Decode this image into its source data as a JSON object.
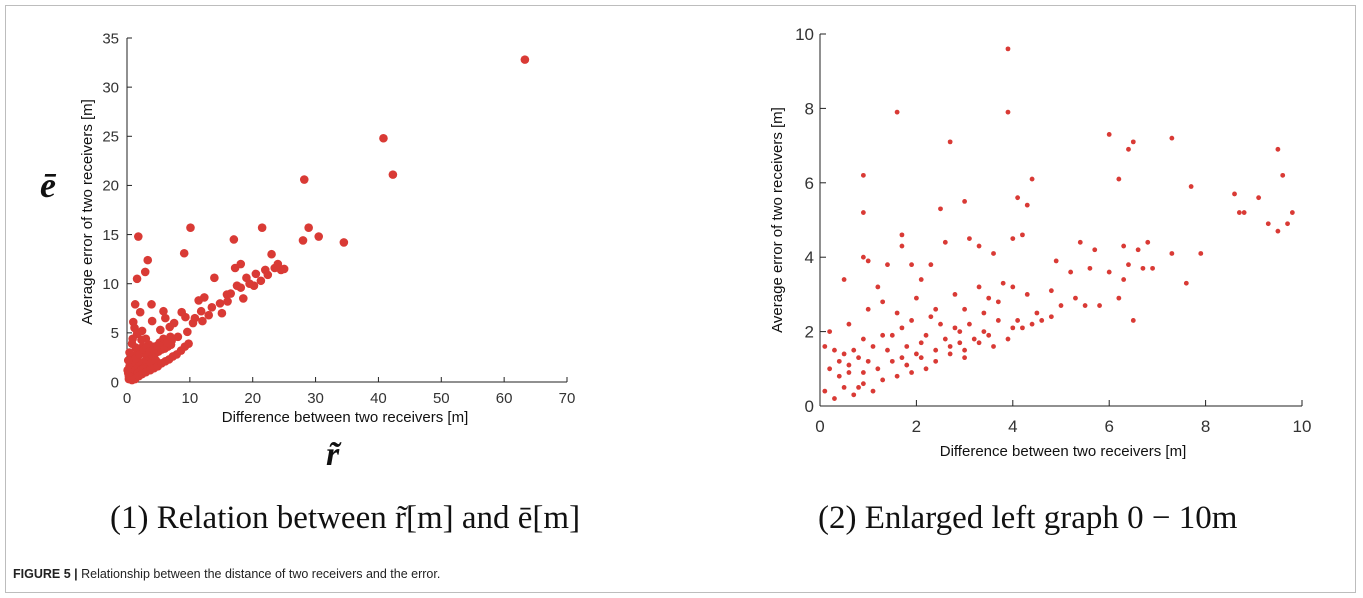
{
  "caption": {
    "label": "FIGURE 5 |",
    "text": " Relationship between the distance of two receivers and the error."
  },
  "subcaptions": {
    "left": "(1) Relation between r̃[m] and ē[m]",
    "right": "(2) Enlarged left graph 0 −   10m"
  },
  "symbols": {
    "y": "ē",
    "x": "r̃"
  },
  "colors": {
    "marker": "#d93a35",
    "axis": "#222222"
  },
  "chart_data": [
    {
      "type": "scatter",
      "xlabel": "Difference between two receivers [m]",
      "ylabel": "Average error of two receivers [m]",
      "xlim": [
        0,
        70
      ],
      "ylim": [
        0,
        35
      ],
      "xticks": [
        0,
        10,
        20,
        30,
        40,
        50,
        60,
        70
      ],
      "yticks": [
        0,
        5,
        10,
        15,
        20,
        25,
        30,
        35
      ],
      "grid": false,
      "points": [
        [
          63.3,
          32.8
        ],
        [
          40.8,
          24.8
        ],
        [
          42.3,
          21.1
        ],
        [
          28.2,
          20.6
        ],
        [
          28.9,
          15.7
        ],
        [
          30.5,
          14.8
        ],
        [
          34.5,
          14.2
        ],
        [
          28,
          14.4
        ],
        [
          1.8,
          14.8
        ],
        [
          10.1,
          15.7
        ],
        [
          9.1,
          13.1
        ],
        [
          3.3,
          12.4
        ],
        [
          2.9,
          11.2
        ],
        [
          1.6,
          10.5
        ],
        [
          13.9,
          10.6
        ],
        [
          17.2,
          11.6
        ],
        [
          18.1,
          12.0
        ],
        [
          21.5,
          15.7
        ],
        [
          17.0,
          14.5
        ],
        [
          23.0,
          13.0
        ],
        [
          23.5,
          11.6
        ],
        [
          24.5,
          11.4
        ],
        [
          22.4,
          10.9
        ],
        [
          21.3,
          10.3
        ],
        [
          20.2,
          9.8
        ],
        [
          18.1,
          9.6
        ],
        [
          15.9,
          8.9
        ],
        [
          14.8,
          8.0
        ],
        [
          12.3,
          8.6
        ],
        [
          11.4,
          8.3
        ],
        [
          15.1,
          7.0
        ],
        [
          10.5,
          6.0
        ],
        [
          9.3,
          6.6
        ],
        [
          8.7,
          7.1
        ],
        [
          7.5,
          6.0
        ],
        [
          6.1,
          6.5
        ],
        [
          5.8,
          7.2
        ],
        [
          3.9,
          7.9
        ],
        [
          4.0,
          6.2
        ],
        [
          1.3,
          7.9
        ],
        [
          1.0,
          6.1
        ],
        [
          2.1,
          7.1
        ],
        [
          1.2,
          5.5
        ],
        [
          2.4,
          5.2
        ],
        [
          5.3,
          5.3
        ],
        [
          6.8,
          5.6
        ],
        [
          9.6,
          5.1
        ],
        [
          8.1,
          4.6
        ],
        [
          7.1,
          4.2
        ],
        [
          5.6,
          4.1
        ],
        [
          4.3,
          3.6
        ],
        [
          3.5,
          3.8
        ],
        [
          3.0,
          4.4
        ],
        [
          2.5,
          3.6
        ],
        [
          1.9,
          3.2
        ],
        [
          1.4,
          3.5
        ],
        [
          0.8,
          3.9
        ],
        [
          1.1,
          2.7
        ],
        [
          0.6,
          2.3
        ],
        [
          0.4,
          1.6
        ],
        [
          0.2,
          0.9
        ],
        [
          0.3,
          0.3
        ],
        [
          0.6,
          0.5
        ],
        [
          1.0,
          1.0
        ],
        [
          1.5,
          1.4
        ],
        [
          2.0,
          1.8
        ],
        [
          2.5,
          2.0
        ],
        [
          3.0,
          2.2
        ],
        [
          3.5,
          2.5
        ],
        [
          4.0,
          2.7
        ],
        [
          4.5,
          2.9
        ],
        [
          5.0,
          3.1
        ],
        [
          5.5,
          3.3
        ],
        [
          6.0,
          3.4
        ],
        [
          6.5,
          3.6
        ],
        [
          7.0,
          3.8
        ],
        [
          1.2,
          1.6
        ],
        [
          1.8,
          2.1
        ],
        [
          2.2,
          1.2
        ],
        [
          2.8,
          2.9
        ],
        [
          3.2,
          1.5
        ],
        [
          0.9,
          0.4
        ],
        [
          1.7,
          0.9
        ],
        [
          2.6,
          1.3
        ],
        [
          3.8,
          1.9
        ],
        [
          4.6,
          2.2
        ],
        [
          0.5,
          1.3
        ],
        [
          0.7,
          2.0
        ],
        [
          1.4,
          2.4
        ],
        [
          2.0,
          2.8
        ],
        [
          2.7,
          3.3
        ],
        [
          3.1,
          3.5
        ],
        [
          3.6,
          3.1
        ],
        [
          4.2,
          3.3
        ],
        [
          4.8,
          3.7
        ],
        [
          5.2,
          4.0
        ],
        [
          5.8,
          4.4
        ],
        [
          6.4,
          4.0
        ],
        [
          6.9,
          4.6
        ],
        [
          2.3,
          4.3
        ],
        [
          1.6,
          4.9
        ],
        [
          0.9,
          4.4
        ],
        [
          0.4,
          3.0
        ],
        [
          0.2,
          2.2
        ],
        [
          0.1,
          1.2
        ],
        [
          0.3,
          0.6
        ],
        [
          0.8,
          0.2
        ],
        [
          1.3,
          0.3
        ],
        [
          1.9,
          0.6
        ],
        [
          2.4,
          0.8
        ],
        [
          3.0,
          1.0
        ],
        [
          3.7,
          1.2
        ],
        [
          4.3,
          1.4
        ],
        [
          4.9,
          1.6
        ],
        [
          5.5,
          1.9
        ],
        [
          6.1,
          2.1
        ],
        [
          6.7,
          2.3
        ],
        [
          7.3,
          2.6
        ],
        [
          7.9,
          2.8
        ],
        [
          8.6,
          3.2
        ],
        [
          9.2,
          3.6
        ],
        [
          9.8,
          3.9
        ],
        [
          12.0,
          6.2
        ],
        [
          13.5,
          7.6
        ],
        [
          16.5,
          9.0
        ],
        [
          19.0,
          10.6
        ],
        [
          20.5,
          11.0
        ],
        [
          22.0,
          11.4
        ],
        [
          24.0,
          12.0
        ],
        [
          25.0,
          11.5
        ],
        [
          19.5,
          10.0
        ],
        [
          18.5,
          8.5
        ],
        [
          10.8,
          6.5
        ],
        [
          11.8,
          7.2
        ],
        [
          13.0,
          6.8
        ],
        [
          16.0,
          8.2
        ],
        [
          17.5,
          9.8
        ]
      ]
    },
    {
      "type": "scatter",
      "xlabel": "Difference between two receivers [m]",
      "ylabel": "Average error of two receivers [m]",
      "xlim": [
        0,
        10
      ],
      "ylim": [
        0,
        10
      ],
      "xticks": [
        0,
        2,
        4,
        6,
        8,
        10
      ],
      "yticks": [
        0,
        2,
        4,
        6,
        8,
        10
      ],
      "grid": false,
      "points": [
        [
          3.9,
          9.6
        ],
        [
          3.9,
          7.9
        ],
        [
          1.6,
          7.9
        ],
        [
          2.7,
          7.1
        ],
        [
          6.0,
          7.3
        ],
        [
          6.5,
          7.1
        ],
        [
          6.4,
          6.9
        ],
        [
          7.3,
          7.2
        ],
        [
          9.5,
          6.9
        ],
        [
          0.9,
          6.2
        ],
        [
          4.4,
          6.1
        ],
        [
          6.2,
          6.1
        ],
        [
          9.6,
          6.2
        ],
        [
          7.7,
          5.9
        ],
        [
          8.6,
          5.7
        ],
        [
          9.1,
          5.6
        ],
        [
          8.8,
          5.2
        ],
        [
          9.8,
          5.2
        ],
        [
          8.7,
          5.2
        ],
        [
          9.7,
          4.9
        ],
        [
          9.3,
          4.9
        ],
        [
          9.5,
          4.7
        ],
        [
          0.9,
          5.2
        ],
        [
          2.5,
          5.3
        ],
        [
          3.0,
          5.5
        ],
        [
          4.1,
          5.6
        ],
        [
          4.3,
          5.4
        ],
        [
          1.7,
          4.6
        ],
        [
          1.7,
          4.3
        ],
        [
          2.6,
          4.4
        ],
        [
          3.1,
          4.5
        ],
        [
          3.3,
          4.3
        ],
        [
          4.0,
          4.5
        ],
        [
          4.2,
          4.6
        ],
        [
          5.4,
          4.4
        ],
        [
          5.7,
          4.2
        ],
        [
          6.3,
          4.3
        ],
        [
          6.6,
          4.2
        ],
        [
          6.8,
          4.4
        ],
        [
          6.7,
          3.7
        ],
        [
          6.9,
          3.7
        ],
        [
          7.3,
          4.1
        ],
        [
          7.6,
          3.3
        ],
        [
          7.9,
          4.1
        ],
        [
          0.9,
          4.0
        ],
        [
          1.0,
          3.9
        ],
        [
          1.4,
          3.8
        ],
        [
          1.9,
          3.8
        ],
        [
          2.3,
          3.8
        ],
        [
          3.6,
          4.1
        ],
        [
          3.8,
          3.3
        ],
        [
          4.9,
          3.9
        ],
        [
          5.2,
          3.6
        ],
        [
          5.6,
          3.7
        ],
        [
          6.0,
          3.6
        ],
        [
          6.4,
          3.8
        ],
        [
          6.5,
          2.3
        ],
        [
          6.3,
          3.4
        ],
        [
          0.5,
          3.4
        ],
        [
          1.2,
          3.2
        ],
        [
          2.1,
          3.4
        ],
        [
          2.8,
          3.0
        ],
        [
          3.3,
          3.2
        ],
        [
          3.5,
          2.9
        ],
        [
          4.0,
          3.2
        ],
        [
          4.3,
          3.0
        ],
        [
          4.8,
          3.1
        ],
        [
          5.3,
          2.9
        ],
        [
          5.5,
          2.7
        ],
        [
          5.8,
          2.7
        ],
        [
          6.2,
          2.9
        ],
        [
          1.0,
          2.6
        ],
        [
          1.3,
          2.8
        ],
        [
          1.6,
          2.5
        ],
        [
          2.0,
          2.9
        ],
        [
          2.4,
          2.6
        ],
        [
          3.0,
          2.6
        ],
        [
          3.4,
          2.5
        ],
        [
          3.7,
          2.8
        ],
        [
          4.1,
          2.3
        ],
        [
          4.4,
          2.2
        ],
        [
          4.6,
          2.3
        ],
        [
          4.8,
          2.4
        ],
        [
          0.2,
          2.0
        ],
        [
          0.6,
          2.2
        ],
        [
          0.9,
          1.8
        ],
        [
          1.3,
          1.9
        ],
        [
          1.7,
          2.1
        ],
        [
          2.2,
          1.9
        ],
        [
          2.5,
          2.2
        ],
        [
          2.9,
          2.0
        ],
        [
          3.2,
          1.8
        ],
        [
          3.5,
          1.9
        ],
        [
          3.9,
          1.8
        ],
        [
          4.2,
          2.1
        ],
        [
          0.1,
          1.6
        ],
        [
          0.3,
          1.5
        ],
        [
          0.5,
          1.4
        ],
        [
          0.8,
          1.3
        ],
        [
          1.1,
          1.6
        ],
        [
          1.4,
          1.5
        ],
        [
          1.8,
          1.6
        ],
        [
          2.1,
          1.7
        ],
        [
          2.4,
          1.5
        ],
        [
          2.7,
          1.6
        ],
        [
          3.0,
          1.5
        ],
        [
          3.3,
          1.7
        ],
        [
          3.6,
          1.6
        ],
        [
          0.2,
          1.0
        ],
        [
          0.4,
          0.8
        ],
        [
          0.6,
          1.1
        ],
        [
          0.9,
          0.9
        ],
        [
          1.2,
          1.0
        ],
        [
          1.5,
          1.2
        ],
        [
          1.8,
          1.1
        ],
        [
          2.1,
          1.3
        ],
        [
          2.4,
          1.2
        ],
        [
          2.7,
          1.4
        ],
        [
          3.0,
          1.3
        ],
        [
          0.1,
          0.4
        ],
        [
          0.3,
          0.2
        ],
        [
          0.5,
          0.5
        ],
        [
          0.7,
          0.3
        ],
        [
          0.9,
          0.6
        ],
        [
          1.1,
          0.4
        ],
        [
          1.3,
          0.7
        ],
        [
          1.6,
          0.8
        ],
        [
          1.9,
          0.9
        ],
        [
          2.2,
          1.0
        ],
        [
          0.4,
          1.2
        ],
        [
          0.7,
          1.5
        ],
        [
          1.0,
          1.2
        ],
        [
          1.5,
          1.9
        ],
        [
          2.0,
          1.4
        ],
        [
          2.6,
          1.8
        ],
        [
          3.1,
          2.2
        ],
        [
          3.7,
          2.3
        ],
        [
          4.5,
          2.5
        ],
        [
          5.0,
          2.7
        ],
        [
          2.3,
          2.4
        ],
        [
          1.9,
          2.3
        ],
        [
          2.8,
          2.1
        ],
        [
          0.6,
          0.9
        ],
        [
          0.8,
          0.5
        ],
        [
          1.7,
          1.3
        ],
        [
          2.9,
          1.7
        ],
        [
          3.4,
          2.0
        ],
        [
          4.0,
          2.1
        ]
      ]
    }
  ]
}
